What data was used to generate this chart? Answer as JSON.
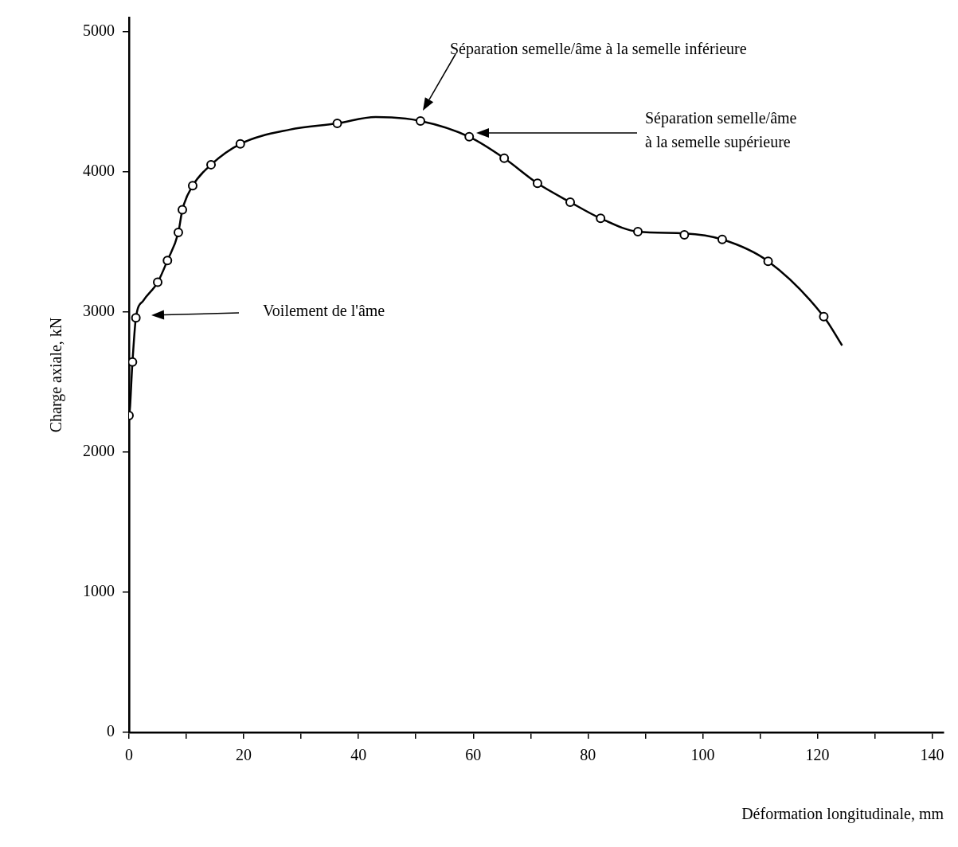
{
  "chart_data": {
    "type": "line",
    "xlabel": "Déformation longitudinale, mm",
    "ylabel": "Charge axiale, kN",
    "xlim": [
      0,
      142
    ],
    "ylim": [
      0,
      5100
    ],
    "xticks": [
      0,
      {
        "value": 10,
        "label": null
      },
      20,
      {
        "value": 30,
        "label": null
      },
      40,
      {
        "value": 50,
        "label": null
      },
      60,
      {
        "value": 70,
        "label": null
      },
      80,
      {
        "value": 90,
        "label": null
      },
      100,
      {
        "value": 110,
        "label": null
      },
      120,
      {
        "value": 130,
        "label": null
      },
      140
    ],
    "yticks": [
      0,
      1000,
      2000,
      3000,
      4000,
      5000
    ],
    "series": [
      {
        "marker": "none",
        "color": "#000000",
        "x": [
          0,
          0,
          0.6,
          1.2,
          2.5,
          5.0,
          6.7,
          8.6,
          9.3,
          11.1,
          14.3,
          19.4,
          28,
          36.3,
          43,
          50.8,
          59.3,
          65.4,
          71.2,
          76.9,
          82.2,
          88.7,
          96.8,
          103.4,
          111.4,
          121.1,
          124.3
        ],
        "values": [
          0,
          2260,
          2642,
          2957,
          3080,
          3211,
          3367,
          3567,
          3728,
          3900,
          4050,
          4198,
          4300,
          4345,
          4390,
          4362,
          4249,
          4096,
          3917,
          3783,
          3667,
          3572,
          3560,
          3517,
          3361,
          2966,
          2760
        ]
      },
      {
        "type": "scatter",
        "marker": "circle",
        "color": "#000000",
        "x": [
          0,
          0.6,
          1.2,
          5.0,
          6.7,
          8.6,
          9.3,
          11.1,
          14.3,
          19.4,
          36.3,
          50.8,
          59.3,
          65.4,
          71.2,
          76.9,
          82.2,
          88.7,
          96.8,
          103.4,
          111.4,
          121.1
        ],
        "values": [
          2260,
          2642,
          2957,
          3211,
          3367,
          3567,
          3728,
          3900,
          4050,
          4198,
          4345,
          4362,
          4249,
          4096,
          3917,
          3783,
          3667,
          3572,
          3550,
          3517,
          3361,
          2966
        ]
      }
    ],
    "annotations": [
      "Voilement de l'âme",
      "Séparation semelle/âme à la semelle inférieure",
      "Séparation semelle/âme\nà la semelle supérieure"
    ]
  }
}
